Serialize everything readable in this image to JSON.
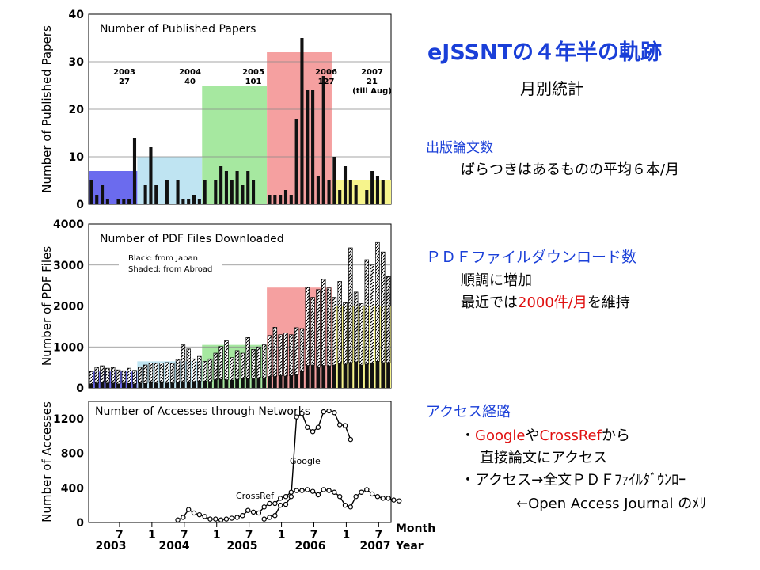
{
  "slide": {
    "title": "eJSSNTの４年半の軌跡",
    "subtitle": "月別統計",
    "papers_heading": "出版論文数",
    "papers_note": "ばらつきはあるものの平均６本/月",
    "pdf_heading": "ＰＤＦファイルダウンロード数",
    "pdf_note1": "順調に増加",
    "pdf_note2_pre": "最近では",
    "pdf_note2_red": "2000件/月",
    "pdf_note2_post": "を維持",
    "access_heading": "アクセス経路",
    "access_line1_bullet": "・",
    "access_line1_google": "Google",
    "access_line1_ya": "や",
    "access_line1_crossref": "CrossRef",
    "access_line1_kara": "から",
    "access_line2": "直接論文にアクセス",
    "access_line3": "・アクセス→全文ＰＤＦﾌｧｲﾙﾀﾞｳﾝﾛｰ",
    "access_line4": "←Open Access Journal のﾒﾘ"
  },
  "colors": {
    "blue": "#1a3fd8",
    "red": "#e01010",
    "period_2003": "#6b6bee",
    "period_2004": "#bfe4f2",
    "period_2005": "#a6e8a0",
    "period_2006": "#f5a0a0",
    "period_2007": "#f6f48c"
  },
  "chart_data": [
    {
      "type": "bar",
      "title": "Number of Published Papers",
      "ylabel": "Number of Published Papers",
      "ylim": [
        0,
        40
      ],
      "yticks": [
        0,
        10,
        20,
        30,
        40
      ],
      "months": 56,
      "values": [
        5,
        2,
        4,
        1,
        0,
        1,
        1,
        1,
        14,
        0,
        4,
        12,
        4,
        0,
        5,
        0,
        5,
        1,
        1,
        2,
        1,
        5,
        0,
        5,
        8,
        7,
        5,
        7,
        4,
        7,
        5,
        0,
        0,
        2,
        2,
        2,
        3,
        2,
        18,
        35,
        24,
        24,
        6,
        27,
        5,
        10,
        3,
        8,
        5,
        4,
        0,
        3,
        7,
        6,
        5,
        0
      ],
      "period_counts": [
        {
          "year": "2003",
          "count": "27"
        },
        {
          "year": "2004",
          "count": "40"
        },
        {
          "year": "2005",
          "count": "101"
        },
        {
          "year": "2006",
          "count": "127"
        },
        {
          "year": "2007",
          "count": "21",
          "note": "(till Aug)"
        }
      ],
      "period_band_levels": [
        7,
        10,
        25,
        32,
        5
      ]
    },
    {
      "type": "bar",
      "title": "Number of PDF Files Downloaded",
      "ylabel": "Number of PDF Files",
      "ylim": [
        0,
        4000
      ],
      "yticks": [
        0,
        1000,
        2000,
        3000,
        4000
      ],
      "legend": [
        "Black:  from Japan",
        "Shaded:  from Abroad"
      ],
      "months": 56,
      "japan": [
        100,
        120,
        140,
        120,
        120,
        100,
        120,
        110,
        100,
        120,
        110,
        130,
        120,
        130,
        120,
        120,
        140,
        150,
        150,
        160,
        170,
        170,
        160,
        200,
        210,
        200,
        190,
        210,
        230,
        230,
        240,
        250,
        250,
        280,
        280,
        300,
        290,
        300,
        320,
        400,
        550,
        560,
        500,
        550,
        540,
        560,
        600,
        580,
        620,
        640,
        560,
        580,
        600,
        650,
        620,
        620
      ],
      "abroad": [
        300,
        380,
        400,
        360,
        380,
        340,
        300,
        370,
        330,
        380,
        450,
        480,
        480,
        480,
        500,
        480,
        560,
        900,
        800,
        550,
        600,
        480,
        550,
        650,
        800,
        950,
        550,
        700,
        620,
        1000,
        700,
        750,
        800,
        1000,
        1200,
        1000,
        1050,
        1000,
        1150,
        1050,
        1900,
        1650,
        1900,
        2100,
        1900,
        1650,
        2000,
        1500,
        2800,
        1700,
        1500,
        2550,
        2400,
        2900,
        2700,
        2100
      ],
      "period_band_levels": [
        400,
        650,
        1050,
        2450,
        2000
      ]
    },
    {
      "type": "line",
      "title": "Number of Accesses through Networks",
      "ylabel": "Number of Accesses",
      "xlabel": "Month",
      "ylim": [
        0,
        1400
      ],
      "yticks": [
        0,
        400,
        800,
        1200
      ],
      "x_tick_labels": [
        "7",
        "1",
        "7",
        "1",
        "7",
        "1",
        "7",
        "1",
        "7",
        "1",
        "7"
      ],
      "year_labels": [
        "2003",
        "2004",
        "2005",
        "2006",
        "2007"
      ],
      "year_axis_label": "Year",
      "series": [
        {
          "name": "Google",
          "start_month": 32,
          "values": [
            40,
            60,
            80,
            200,
            210,
            300,
            1220,
            1260,
            1100,
            1050,
            1100,
            1280,
            1290,
            1270,
            1130,
            1120,
            960
          ]
        },
        {
          "name": "CrossRef",
          "start_month": 16,
          "values": [
            30,
            60,
            150,
            110,
            90,
            70,
            40,
            40,
            30,
            40,
            50,
            60,
            80,
            140,
            120,
            110,
            180,
            220,
            220,
            280,
            300,
            350,
            370,
            370,
            380,
            360,
            320,
            380,
            370,
            350,
            300,
            200,
            180,
            300,
            350,
            380,
            330,
            300,
            280,
            280,
            260,
            250
          ]
        }
      ]
    }
  ]
}
